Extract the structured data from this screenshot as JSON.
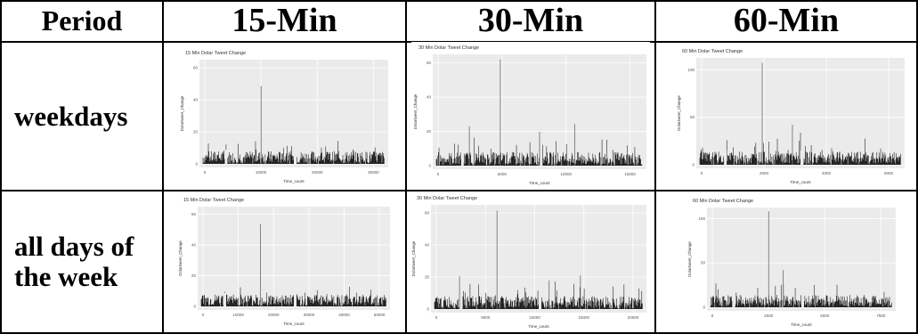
{
  "header": {
    "period": "Period",
    "col1": "15-Min",
    "col2": "30-Min",
    "col3": "60-Min"
  },
  "rows": [
    {
      "label": "weekdays"
    },
    {
      "label_line1": "all days of",
      "label_line2": "the week"
    }
  ],
  "plots": [
    {
      "title": "15 Min Dolar Tweet Change",
      "xlabel": "Time_count",
      "ylabel": "Dolartweet_Change",
      "yticks": [
        "0",
        "20",
        "40",
        "60"
      ],
      "xticks": [
        "0",
        "10000",
        "20000",
        "30000"
      ],
      "ymax": 60,
      "xmax": 35000,
      "spikes": [
        {
          "x": 0.32,
          "v": 0.76
        }
      ]
    },
    {
      "title": "30 Min Dolar Tweet Change",
      "xlabel": "Time_count",
      "ylabel": "Dolartweet_Change",
      "yticks": [
        "0",
        "20",
        "40",
        "60"
      ],
      "xticks": [
        "0",
        "5000",
        "10000",
        "15000"
      ],
      "ymax": 60,
      "xmax": 18000,
      "spikes": [
        {
          "x": 0.31,
          "v": 0.97
        },
        {
          "x": 0.16,
          "v": 0.36
        },
        {
          "x": 0.5,
          "v": 0.31
        },
        {
          "x": 0.67,
          "v": 0.38
        }
      ]
    },
    {
      "title": "60 Min Dolar Tweet Change",
      "xlabel": "Time_count",
      "ylabel": "Dolartweet_Change",
      "yticks": [
        "0",
        "50",
        "100"
      ],
      "xticks": [
        "0",
        "2000",
        "4000",
        "6000"
      ],
      "ymax": 130,
      "xmax": 7500,
      "spikes": [
        {
          "x": 0.31,
          "v": 0.97
        },
        {
          "x": 0.46,
          "v": 0.38
        }
      ]
    },
    {
      "title": "15 Min Dolar Tweet Change",
      "xlabel": "Time_count",
      "ylabel": "Dolartweet_Change",
      "yticks": [
        "0",
        "20",
        "40",
        "60"
      ],
      "xticks": [
        "0",
        "10000",
        "20000",
        "30000",
        "40000",
        "50000"
      ],
      "ymax": 60,
      "xmax": 52000,
      "spikes": [
        {
          "x": 0.32,
          "v": 0.84
        }
      ]
    },
    {
      "title": "30 Min Dolar Tweet Change",
      "xlabel": "Time_count",
      "ylabel": "Dolartweet_Change",
      "yticks": [
        "0",
        "20",
        "40",
        "60"
      ],
      "xticks": [
        "0",
        "5000",
        "10000",
        "15000",
        "20000"
      ],
      "ymax": 60,
      "xmax": 22000,
      "spikes": [
        {
          "x": 0.3,
          "v": 0.96
        },
        {
          "x": 0.12,
          "v": 0.32
        },
        {
          "x": 0.55,
          "v": 0.28
        },
        {
          "x": 0.7,
          "v": 0.33
        }
      ]
    },
    {
      "title": "60 Min Dolar Tweet Change",
      "xlabel": "Time_count",
      "ylabel": "Dolartweet_Change",
      "yticks": [
        "0",
        "50",
        "100"
      ],
      "xticks": [
        "0",
        "2500",
        "5000",
        "7500"
      ],
      "ymax": 130,
      "xmax": 9000,
      "spikes": [
        {
          "x": 0.32,
          "v": 0.98
        },
        {
          "x": 0.26,
          "v": 0.2
        },
        {
          "x": 0.4,
          "v": 0.38
        }
      ]
    }
  ]
}
